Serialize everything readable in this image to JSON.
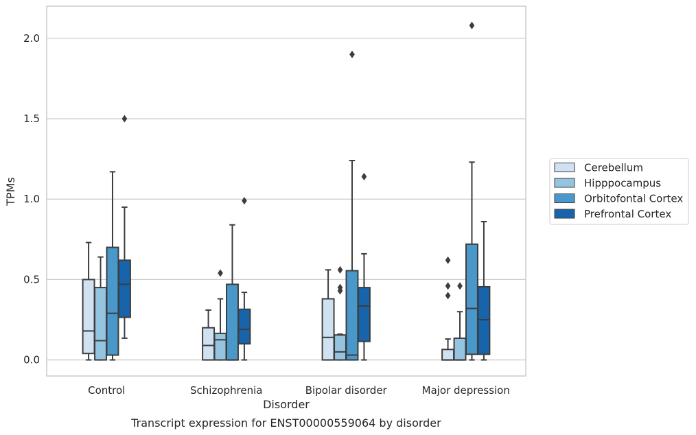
{
  "chart_data": {
    "type": "box",
    "caption": "Transcript expression for ENST00000559064 by disorder",
    "xlabel": "Disorder",
    "ylabel": "TPMs",
    "ylim": [
      -0.1,
      2.2
    ],
    "yticks": [
      "0.0",
      "0.5",
      "1.0",
      "1.5",
      "2.0"
    ],
    "categories": [
      "Control",
      "Schizophrenia",
      "Bipolar disorder",
      "Major depression"
    ],
    "grid": "horizontal",
    "legend_position": "right",
    "series": [
      {
        "name": "Cerebellum",
        "color": "#d0e1f2",
        "boxes": [
          {
            "whisker_low": 0.0,
            "q1": 0.04,
            "median": 0.18,
            "q3": 0.5,
            "whisker_high": 0.73,
            "outliers": []
          },
          {
            "whisker_low": 0.0,
            "q1": 0.0,
            "median": 0.09,
            "q3": 0.2,
            "whisker_high": 0.31,
            "outliers": []
          },
          {
            "whisker_low": 0.0,
            "q1": 0.0,
            "median": 0.14,
            "q3": 0.38,
            "whisker_high": 0.56,
            "outliers": []
          },
          {
            "whisker_low": 0.0,
            "q1": 0.0,
            "median": 0.0,
            "q3": 0.065,
            "whisker_high": 0.13,
            "outliers": [
              0.4,
              0.46,
              0.62
            ]
          }
        ]
      },
      {
        "name": "Hipppocampus",
        "color": "#94c4df",
        "boxes": [
          {
            "whisker_low": 0.0,
            "q1": 0.0,
            "median": 0.12,
            "q3": 0.45,
            "whisker_high": 0.64,
            "outliers": []
          },
          {
            "whisker_low": 0.0,
            "q1": 0.0,
            "median": 0.125,
            "q3": 0.165,
            "whisker_high": 0.38,
            "outliers": [
              0.54
            ]
          },
          {
            "whisker_low": 0.0,
            "q1": 0.0,
            "median": 0.05,
            "q3": 0.155,
            "whisker_high": 0.16,
            "outliers": [
              0.43,
              0.45,
              0.56
            ]
          },
          {
            "whisker_low": 0.0,
            "q1": 0.0,
            "median": 0.0,
            "q3": 0.135,
            "whisker_high": 0.3,
            "outliers": [
              0.46
            ]
          }
        ]
      },
      {
        "name": "Orbitofontal Cortex",
        "color": "#4a98c9",
        "boxes": [
          {
            "whisker_low": 0.0,
            "q1": 0.03,
            "median": 0.29,
            "q3": 0.7,
            "whisker_high": 1.17,
            "outliers": []
          },
          {
            "whisker_low": 0.0,
            "q1": 0.0,
            "median": 0.0,
            "q3": 0.47,
            "whisker_high": 0.84,
            "outliers": []
          },
          {
            "whisker_low": 0.0,
            "q1": 0.0,
            "median": 0.03,
            "q3": 0.555,
            "whisker_high": 1.24,
            "outliers": [
              1.9
            ]
          },
          {
            "whisker_low": 0.0,
            "q1": 0.035,
            "median": 0.32,
            "q3": 0.72,
            "whisker_high": 1.23,
            "outliers": [
              2.08
            ]
          }
        ]
      },
      {
        "name": "Prefrontal Cortex",
        "color": "#1764ab",
        "boxes": [
          {
            "whisker_low": 0.135,
            "q1": 0.265,
            "median": 0.47,
            "q3": 0.62,
            "whisker_high": 0.95,
            "outliers": [
              1.5
            ]
          },
          {
            "whisker_low": 0.0,
            "q1": 0.1,
            "median": 0.19,
            "q3": 0.315,
            "whisker_high": 0.42,
            "outliers": [
              0.99
            ]
          },
          {
            "whisker_low": 0.0,
            "q1": 0.115,
            "median": 0.335,
            "q3": 0.45,
            "whisker_high": 0.66,
            "outliers": [
              1.14
            ]
          },
          {
            "whisker_low": 0.0,
            "q1": 0.035,
            "median": 0.25,
            "q3": 0.455,
            "whisker_high": 0.86,
            "outliers": []
          }
        ]
      }
    ]
  }
}
